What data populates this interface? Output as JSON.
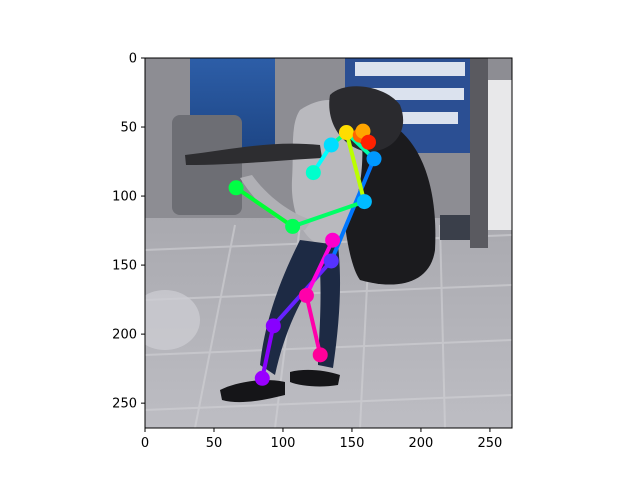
{
  "chart_data": {
    "type": "scatter",
    "image_width": 266,
    "image_height": 268,
    "xlim": [
      0,
      266
    ],
    "ylim": [
      268,
      0
    ],
    "x_ticks": [
      0,
      50,
      100,
      150,
      200,
      250
    ],
    "y_ticks": [
      0,
      50,
      100,
      150,
      200,
      250
    ],
    "x_tick_labels": [
      "0",
      "50",
      "100",
      "150",
      "200",
      "250"
    ],
    "y_tick_labels": [
      "0",
      "50",
      "100",
      "150",
      "200",
      "250"
    ],
    "grid": false,
    "keypoints": [
      {
        "name": "nose",
        "x": 146,
        "y": 54,
        "color": "#ffdd00"
      },
      {
        "name": "left-eye",
        "x": 156,
        "y": 56,
        "color": "#ff6600"
      },
      {
        "name": "right-eye",
        "x": 158,
        "y": 53,
        "color": "#ffa500"
      },
      {
        "name": "left-ear",
        "x": 162,
        "y": 61,
        "color": "#ff2200"
      },
      {
        "name": "left-shoulder",
        "x": 166,
        "y": 73,
        "color": "#0099ff"
      },
      {
        "name": "right-shoulder",
        "x": 135,
        "y": 63,
        "color": "#00ddff"
      },
      {
        "name": "left-elbow",
        "x": 159,
        "y": 104,
        "color": "#00bbff"
      },
      {
        "name": "right-elbow",
        "x": 122,
        "y": 83,
        "color": "#00ffcc"
      },
      {
        "name": "left-wrist",
        "x": 66,
        "y": 94,
        "color": "#00ff44"
      },
      {
        "name": "right-wrist",
        "x": 107,
        "y": 122,
        "color": "#00ff55"
      },
      {
        "name": "left-hip",
        "x": 135,
        "y": 147,
        "color": "#5533ff"
      },
      {
        "name": "right-hip",
        "x": 136,
        "y": 132,
        "color": "#ff00cc"
      },
      {
        "name": "left-knee",
        "x": 93,
        "y": 194,
        "color": "#8800ff"
      },
      {
        "name": "right-knee",
        "x": 117,
        "y": 172,
        "color": "#ff00aa"
      },
      {
        "name": "left-ankle",
        "x": 85,
        "y": 232,
        "color": "#9900ff"
      },
      {
        "name": "right-ankle",
        "x": 127,
        "y": 215,
        "color": "#ff0099"
      }
    ],
    "limbs": [
      {
        "from": "nose",
        "to": "right-shoulder",
        "color": "#00ff88"
      },
      {
        "from": "nose",
        "to": "left-shoulder",
        "color": "#00ffaa"
      },
      {
        "from": "right-shoulder",
        "to": "right-elbow",
        "color": "#00ffff"
      },
      {
        "from": "left-shoulder",
        "to": "left-hip",
        "color": "#0077ff"
      },
      {
        "from": "nose",
        "to": "left-elbow",
        "color": "#bbff00"
      },
      {
        "from": "left-elbow",
        "to": "right-wrist",
        "color": "#00ff66"
      },
      {
        "from": "right-wrist",
        "to": "left-wrist",
        "color": "#00ff33"
      },
      {
        "from": "left-hip",
        "to": "left-knee",
        "color": "#6622ff"
      },
      {
        "from": "left-knee",
        "to": "left-ankle",
        "color": "#8800ff"
      },
      {
        "from": "right-hip",
        "to": "right-knee",
        "color": "#ff00dd"
      },
      {
        "from": "right-knee",
        "to": "right-ankle",
        "color": "#ff00aa"
      }
    ]
  }
}
